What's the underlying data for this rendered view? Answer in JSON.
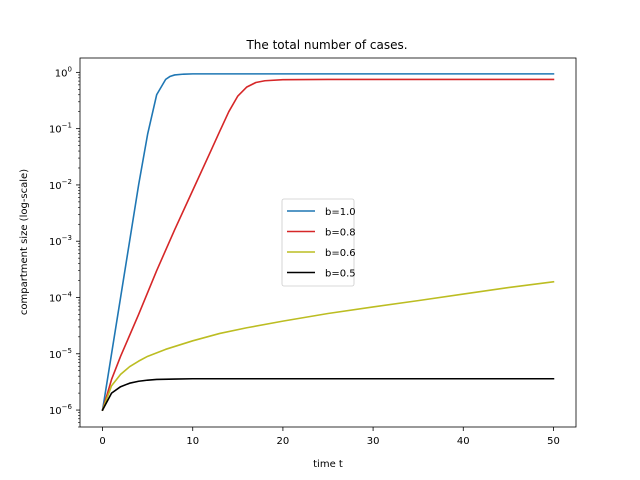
{
  "chart_data": {
    "type": "line",
    "title": "The total number of cases.",
    "xlabel": "time t",
    "ylabel": "compartment size (log-scale)",
    "xlim": [
      -2.5,
      52.5
    ],
    "ylim": [
      5e-07,
      1.8
    ],
    "yscale": "log",
    "xticks": [
      0,
      10,
      20,
      30,
      40,
      50
    ],
    "xtick_labels": [
      "0",
      "10",
      "20",
      "30",
      "40",
      "50"
    ],
    "yticks": [
      1e-06,
      1e-05,
      0.0001,
      0.001,
      0.01,
      0.1,
      1
    ],
    "ytick_labels": [
      {
        "base": "10",
        "exp": "−6"
      },
      {
        "base": "10",
        "exp": "−5"
      },
      {
        "base": "10",
        "exp": "−4"
      },
      {
        "base": "10",
        "exp": "−3"
      },
      {
        "base": "10",
        "exp": "−2"
      },
      {
        "base": "10",
        "exp": "−1"
      },
      {
        "base": "10",
        "exp": "0"
      }
    ],
    "grid": false,
    "legend": {
      "position": "center-right"
    },
    "series": [
      {
        "name": "b=1.0",
        "color": "#1f77b4",
        "x": [
          0,
          1,
          2,
          3,
          4,
          5,
          6,
          7,
          7.5,
          8,
          9,
          10,
          12,
          15,
          20,
          30,
          40,
          50
        ],
        "y": [
          1e-06,
          1e-05,
          0.0001,
          0.001,
          0.01,
          0.08,
          0.4,
          0.75,
          0.85,
          0.9,
          0.93,
          0.94,
          0.94,
          0.94,
          0.94,
          0.94,
          0.94,
          0.94
        ]
      },
      {
        "name": "b=0.8",
        "color": "#d62728",
        "x": [
          0,
          1,
          2,
          4,
          6,
          8,
          10,
          12,
          13,
          14,
          15,
          16,
          17,
          18,
          20,
          25,
          30,
          40,
          50
        ],
        "y": [
          1e-06,
          3.5e-06,
          9e-06,
          5e-05,
          0.0003,
          0.0016,
          0.008,
          0.04,
          0.09,
          0.2,
          0.38,
          0.55,
          0.66,
          0.71,
          0.74,
          0.75,
          0.75,
          0.75,
          0.75
        ]
      },
      {
        "name": "b=0.6",
        "color": "#bcbd22",
        "x": [
          0,
          1,
          2,
          3,
          4,
          5,
          7,
          10,
          13,
          16,
          20,
          25,
          30,
          35,
          40,
          45,
          50
        ],
        "y": [
          1e-06,
          2.7e-06,
          4.3e-06,
          5.9e-06,
          7.4e-06,
          9e-06,
          1.2e-05,
          1.7e-05,
          2.3e-05,
          2.9e-05,
          3.8e-05,
          5.2e-05,
          6.8e-05,
          8.8e-05,
          0.000115,
          0.00015,
          0.00019
        ]
      },
      {
        "name": "b=0.5",
        "color": "#000000",
        "x": [
          0,
          1,
          2,
          3,
          4,
          5,
          6,
          8,
          10,
          15,
          20,
          30,
          40,
          50
        ],
        "y": [
          1e-06,
          2e-06,
          2.6e-06,
          3e-06,
          3.25e-06,
          3.4e-06,
          3.5e-06,
          3.55e-06,
          3.6e-06,
          3.6e-06,
          3.6e-06,
          3.6e-06,
          3.6e-06,
          3.6e-06
        ]
      }
    ]
  }
}
